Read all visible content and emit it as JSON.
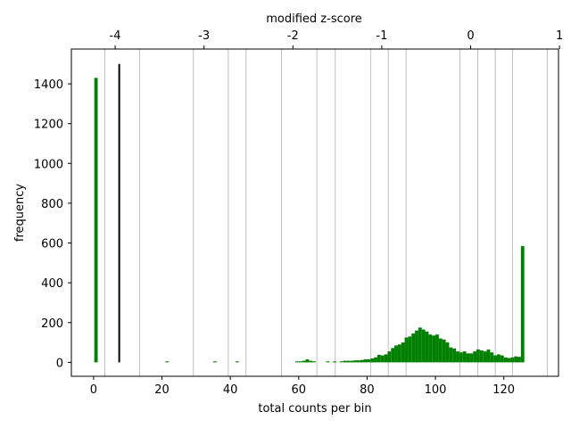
{
  "chart_data": {
    "type": "bar",
    "xlabel": "total counts per bin",
    "ylabel": "frequency",
    "top_xlabel": "modified z-score",
    "xlim": [
      -6.5,
      136
    ],
    "ylim": [
      -70,
      1575
    ],
    "x_ticks": [
      0,
      20,
      40,
      60,
      80,
      100,
      120
    ],
    "y_ticks": [
      0,
      200,
      400,
      600,
      800,
      1000,
      1200,
      1400
    ],
    "top_ticks": [
      {
        "label": "-4",
        "x": 6.3
      },
      {
        "label": "-3",
        "x": 32.3
      },
      {
        "label": "-2",
        "x": 58.3
      },
      {
        "label": "-1",
        "x": 84.3
      },
      {
        "label": "0",
        "x": 110.3
      },
      {
        "label": "1",
        "x": 136.3
      }
    ],
    "grid_x": [
      3.3,
      13.5,
      29.2,
      39.4,
      44.6,
      55.0,
      65.3,
      70.7,
      81.1,
      86.2,
      91.4,
      107.2,
      112.4,
      117.5,
      122.5,
      132.7
    ],
    "threshold_line": {
      "x": 7.5,
      "y_top": 1500,
      "color": "#000000"
    },
    "bar_color": "#008000",
    "bar_width": 1.0,
    "bars": [
      [
        0.7,
        1430
      ],
      [
        21.5,
        5
      ],
      [
        35.5,
        5
      ],
      [
        42,
        5
      ],
      [
        59.5,
        5
      ],
      [
        60.5,
        5
      ],
      [
        61.5,
        8
      ],
      [
        62.5,
        15
      ],
      [
        63.5,
        8
      ],
      [
        64.5,
        5
      ],
      [
        68.5,
        5
      ],
      [
        70.5,
        5
      ],
      [
        72.5,
        5
      ],
      [
        73.5,
        8
      ],
      [
        74.5,
        8
      ],
      [
        75.5,
        8
      ],
      [
        76.5,
        10
      ],
      [
        77.5,
        10
      ],
      [
        78.5,
        12
      ],
      [
        79.5,
        15
      ],
      [
        80.5,
        15
      ],
      [
        81.5,
        20
      ],
      [
        82.5,
        25
      ],
      [
        83.5,
        38
      ],
      [
        84.5,
        35
      ],
      [
        85.5,
        40
      ],
      [
        86.5,
        55
      ],
      [
        87.5,
        72
      ],
      [
        88.5,
        85
      ],
      [
        89.5,
        90
      ],
      [
        90.5,
        100
      ],
      [
        91.5,
        125
      ],
      [
        92.5,
        130
      ],
      [
        93.5,
        145
      ],
      [
        94.5,
        160
      ],
      [
        95.5,
        175
      ],
      [
        96.5,
        165
      ],
      [
        97.5,
        155
      ],
      [
        98.5,
        140
      ],
      [
        99.5,
        135
      ],
      [
        100.5,
        140
      ],
      [
        101.5,
        120
      ],
      [
        102.5,
        115
      ],
      [
        103.5,
        100
      ],
      [
        104.5,
        75
      ],
      [
        105.5,
        70
      ],
      [
        106.5,
        55
      ],
      [
        107.5,
        50
      ],
      [
        108.5,
        55
      ],
      [
        109.5,
        45
      ],
      [
        110.5,
        45
      ],
      [
        111.5,
        55
      ],
      [
        112.5,
        65
      ],
      [
        113.5,
        60
      ],
      [
        114.5,
        55
      ],
      [
        115.5,
        65
      ],
      [
        116.5,
        50
      ],
      [
        117.5,
        35
      ],
      [
        118.5,
        40
      ],
      [
        119.5,
        35
      ],
      [
        120.5,
        25
      ],
      [
        121.5,
        22
      ],
      [
        122.5,
        25
      ],
      [
        123.5,
        30
      ],
      [
        124.5,
        28
      ],
      [
        125.5,
        585
      ]
    ]
  }
}
